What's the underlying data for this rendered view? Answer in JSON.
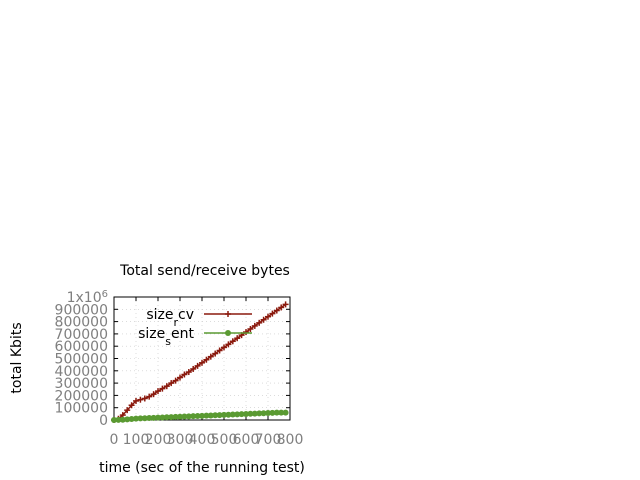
{
  "chart_data": {
    "type": "line",
    "title": "Total send/receive bytes",
    "xlabel": "time (sec of the running test)",
    "ylabel": "total Kbits",
    "xlim": [
      0,
      800
    ],
    "ylim": [
      0,
      1000000
    ],
    "x_ticks": [
      "0",
      "100",
      "200",
      "300",
      "400",
      "500",
      "600",
      "700",
      "800"
    ],
    "y_ticks": [
      "0",
      "100000",
      "200000",
      "300000",
      "400000",
      "500000",
      "600000",
      "700000",
      "800000",
      "900000",
      "1x10^6"
    ],
    "grid": true,
    "legend_position": "top-right",
    "series": [
      {
        "name_base": "size",
        "name_sub": "r",
        "name_rest": "cv",
        "color": "#8b1a0e",
        "marker": "plus",
        "x": [
          0,
          20,
          40,
          60,
          80,
          100,
          120,
          140,
          160,
          180,
          200,
          220,
          240,
          260,
          280,
          300,
          320,
          340,
          360,
          380,
          400,
          420,
          440,
          460,
          480,
          500,
          520,
          540,
          560,
          580,
          600,
          620,
          640,
          660,
          680,
          700,
          720,
          740,
          760,
          780
        ],
        "y": [
          0,
          10000,
          40000,
          80000,
          120000,
          155000,
          165000,
          175000,
          190000,
          210000,
          235000,
          255000,
          275000,
          300000,
          320000,
          345000,
          370000,
          390000,
          415000,
          440000,
          465000,
          490000,
          515000,
          540000,
          565000,
          590000,
          615000,
          640000,
          665000,
          690000,
          715000,
          740000,
          765000,
          790000,
          815000,
          840000,
          865000,
          890000,
          915000,
          940000
        ]
      },
      {
        "name_base": "size",
        "name_sub": "s",
        "name_rest": "ent",
        "color": "#5a9a32",
        "marker": "circle",
        "x": [
          0,
          20,
          40,
          60,
          80,
          100,
          120,
          140,
          160,
          180,
          200,
          220,
          240,
          260,
          280,
          300,
          320,
          340,
          360,
          380,
          400,
          420,
          440,
          460,
          480,
          500,
          520,
          540,
          560,
          580,
          600,
          620,
          640,
          660,
          680,
          700,
          720,
          740,
          760,
          780
        ],
        "y": [
          0,
          1000,
          2500,
          5000,
          8000,
          11000,
          13000,
          14500,
          16000,
          17500,
          19000,
          20500,
          22000,
          23500,
          25000,
          26500,
          28000,
          29500,
          31000,
          32500,
          34000,
          35500,
          37000,
          38500,
          40000,
          41500,
          43000,
          44500,
          46000,
          47500,
          49000,
          50500,
          52000,
          53500,
          55000,
          56500,
          58000,
          59500,
          60000,
          60000
        ]
      }
    ]
  }
}
